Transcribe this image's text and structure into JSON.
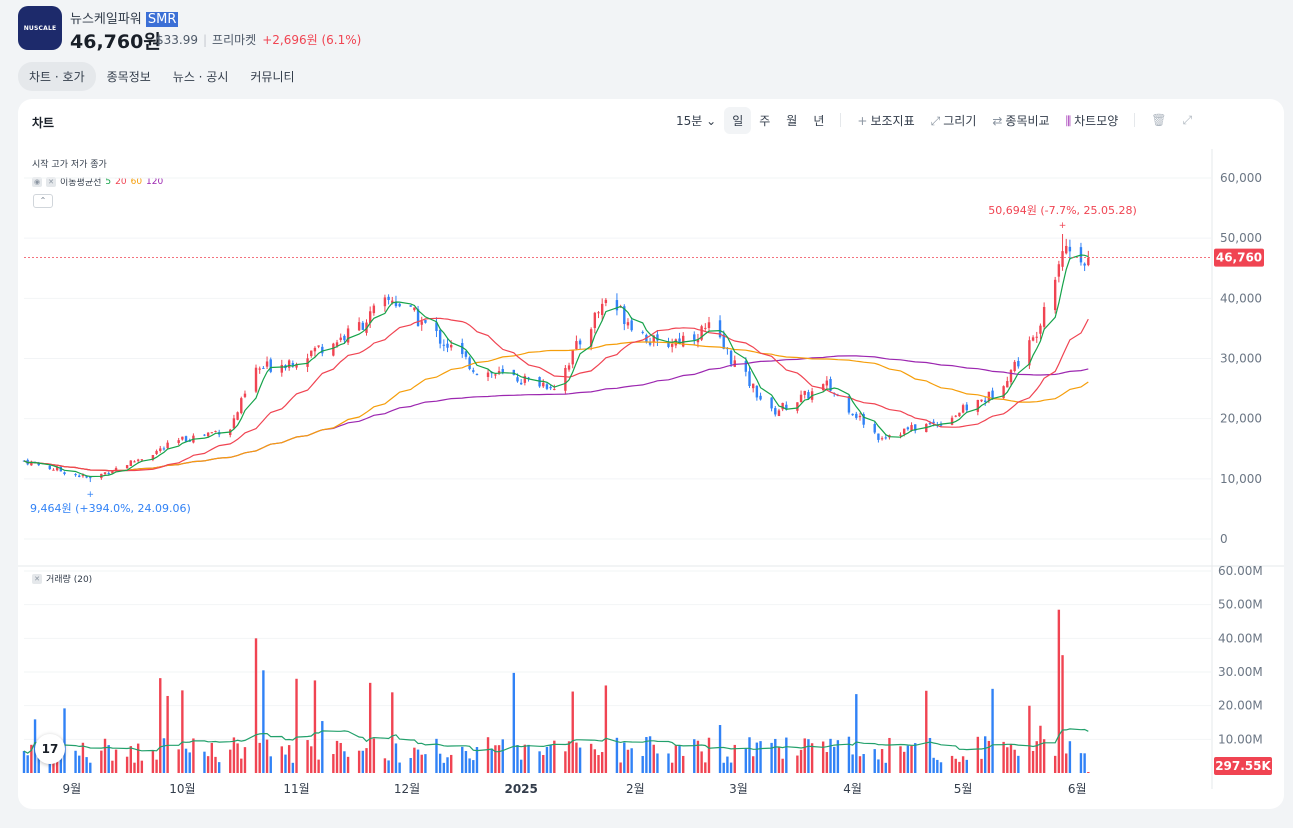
{
  "header": {
    "logo_text": "NUSCALE",
    "name": "뉴스케일파워",
    "ticker": "SMR",
    "price": "46,760원",
    "usd_price": "$33.99",
    "market_label": "프리마켓",
    "change": "+2,696원 (6.1%)"
  },
  "tabs": [
    {
      "label": "차트 · 호가"
    },
    {
      "label": "종목정보"
    },
    {
      "label": "뉴스 · 공시"
    },
    {
      "label": "커뮤니티"
    }
  ],
  "chart_panel": {
    "title": "차트",
    "interval": "15분",
    "period_tabs": [
      "일",
      "주",
      "월",
      "년"
    ],
    "tools": [
      "보조지표",
      "그리기",
      "종목비교",
      "차트모양"
    ],
    "ohlc_legend": "시작 고가 저가 종가",
    "ma_label": "이동평균선",
    "ma_periods": [
      {
        "label": "5",
        "color": "#16a34a"
      },
      {
        "label": "20",
        "color": "#f04452"
      },
      {
        "label": "60",
        "color": "#f59e0b"
      },
      {
        "label": "120",
        "color": "#9c27b0"
      }
    ],
    "volume_legend": "거래량 (20)",
    "tv_badge": "17"
  },
  "chart_data": {
    "type": "candlestick",
    "price_axis": {
      "ticks": [
        "60,000",
        "50,000",
        "40,000",
        "30,000",
        "20,000",
        "10,000",
        "0"
      ],
      "values": [
        60000,
        50000,
        40000,
        30000,
        20000,
        10000,
        0
      ]
    },
    "volume_axis": {
      "ticks": [
        "60.00M",
        "50.00M",
        "40.00M",
        "30.00M",
        "20.00M",
        "10.00M"
      ],
      "values": [
        60,
        50,
        40,
        30,
        20,
        10
      ]
    },
    "x_ticks": [
      "9월",
      "10월",
      "11월",
      "12월",
      "2025",
      "2월",
      "3월",
      "4월",
      "5월",
      "6월"
    ],
    "current_price_label": "46,760",
    "current_price": 46760,
    "current_volume_label": "297.55K",
    "high_annotation": "50,694원 (-7.7%, 25.05.28)",
    "high_value": 50694,
    "low_annotation": "9,464원 (+394.0%, 24.09.06)",
    "low_value": 9464,
    "up_color": "#f04452",
    "down_color": "#3182f6",
    "close_series_approx": [
      {
        "date": "2024-08-19",
        "close": 13000
      },
      {
        "date": "2024-09-06",
        "close": 10000
      },
      {
        "date": "2024-09-20",
        "close": 13500
      },
      {
        "date": "2024-10-01",
        "close": 16500
      },
      {
        "date": "2024-10-14",
        "close": 18500
      },
      {
        "date": "2024-10-21",
        "close": 28000
      },
      {
        "date": "2024-11-01",
        "close": 30000
      },
      {
        "date": "2024-11-15",
        "close": 34000
      },
      {
        "date": "2024-11-27",
        "close": 40000
      },
      {
        "date": "2024-12-05",
        "close": 36000
      },
      {
        "date": "2024-12-20",
        "close": 28000
      },
      {
        "date": "2025-01-10",
        "close": 25500
      },
      {
        "date": "2025-01-24",
        "close": 40000
      },
      {
        "date": "2025-02-07",
        "close": 32000
      },
      {
        "date": "2025-02-21",
        "close": 35000
      },
      {
        "date": "2025-03-10",
        "close": 21000
      },
      {
        "date": "2025-03-25",
        "close": 25500
      },
      {
        "date": "2025-04-08",
        "close": 17000
      },
      {
        "date": "2025-04-25",
        "close": 19500
      },
      {
        "date": "2025-05-09",
        "close": 24000
      },
      {
        "date": "2025-05-20",
        "close": 33000
      },
      {
        "date": "2025-05-28",
        "close": 48500
      },
      {
        "date": "2025-06-04",
        "close": 46760
      }
    ]
  }
}
